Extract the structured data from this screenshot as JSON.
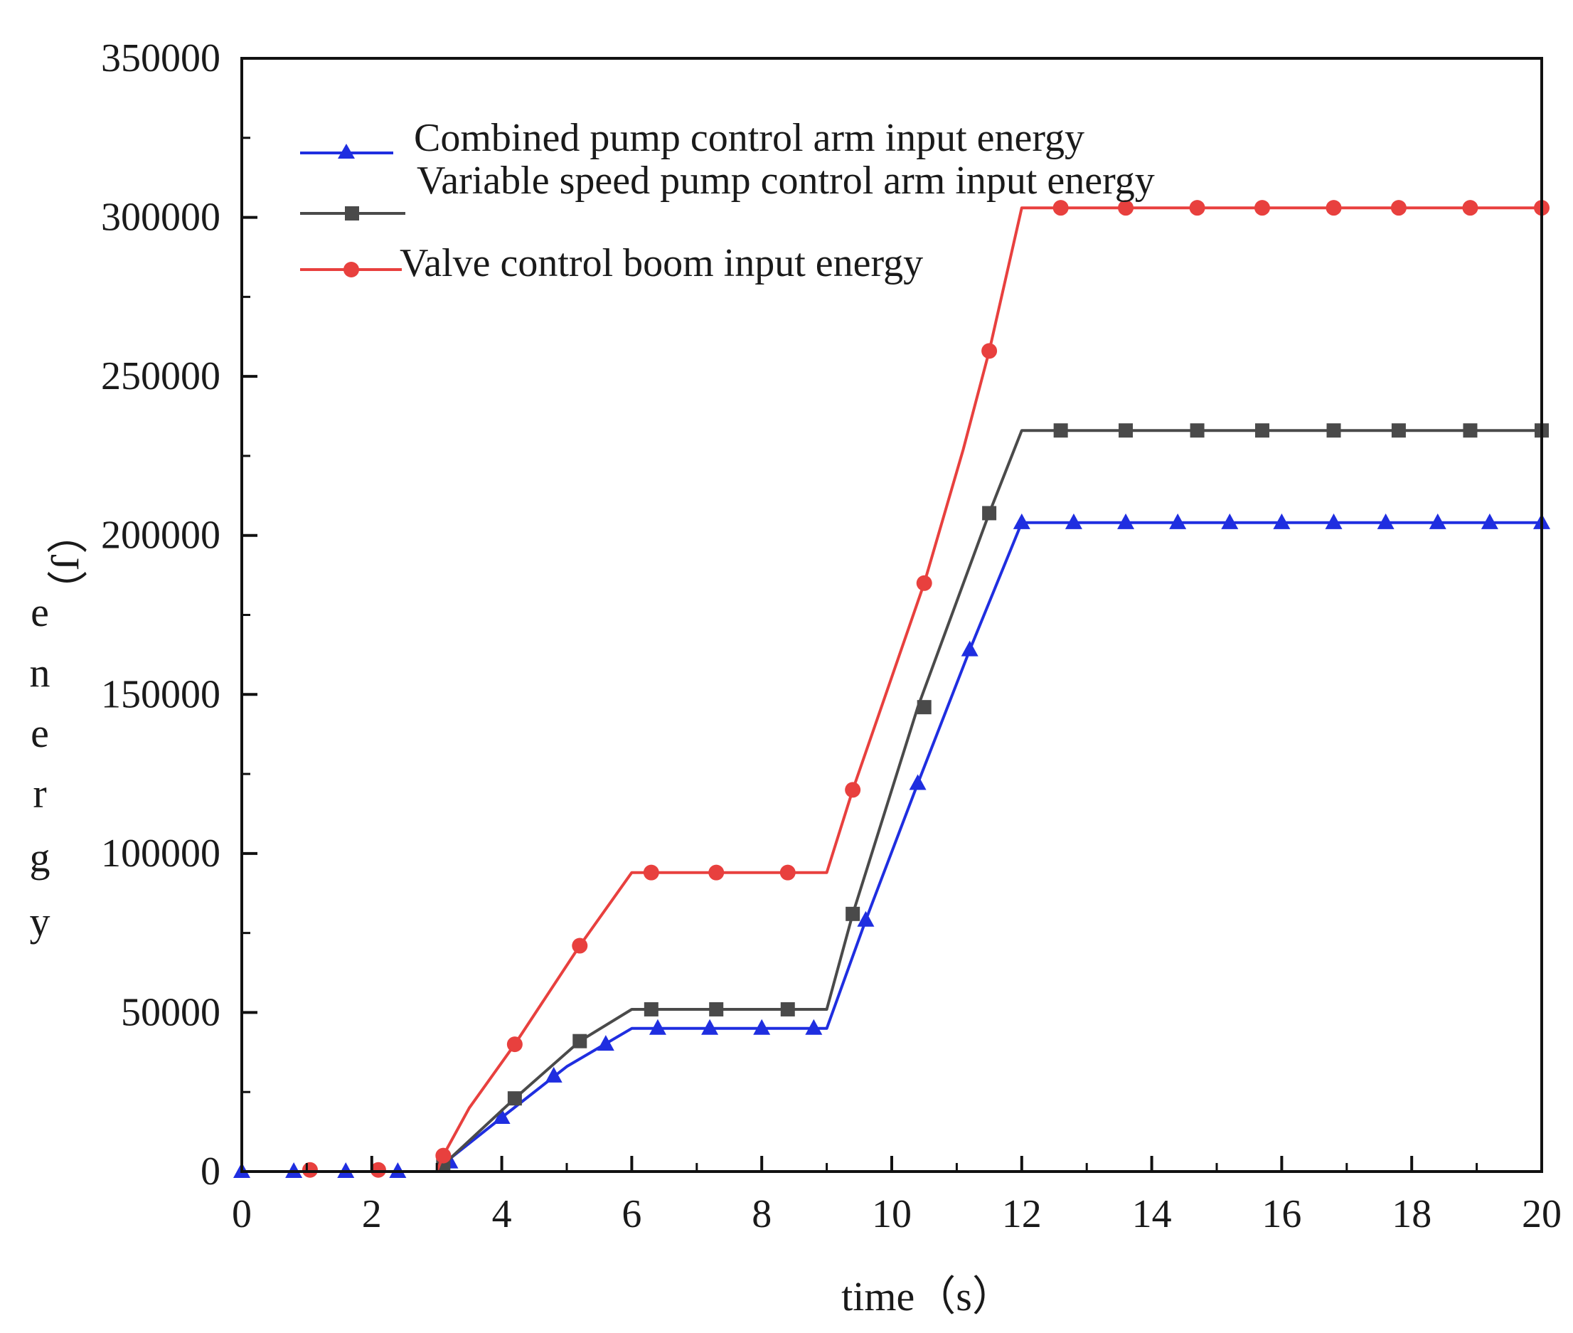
{
  "chart_data": {
    "type": "line",
    "title": "",
    "xlabel": "time（s）",
    "ylabel": "energy（J）",
    "xlim": [
      0,
      20
    ],
    "ylim": [
      0,
      350000
    ],
    "x_ticks": [
      0,
      2,
      4,
      6,
      8,
      10,
      12,
      14,
      16,
      18,
      20
    ],
    "y_ticks": [
      0,
      50000,
      100000,
      150000,
      200000,
      250000,
      300000,
      350000
    ],
    "x_tick_labels": [
      "0",
      "2",
      "4",
      "6",
      "8",
      "10",
      "12",
      "14",
      "16",
      "18",
      "20"
    ],
    "y_tick_labels": [
      "0",
      "50000",
      "100000",
      "150000",
      "200000",
      "250000",
      "300000",
      "350000"
    ],
    "ylabel_parts": [
      "（J）",
      "e",
      "n",
      "e",
      "r",
      "g",
      "y"
    ],
    "legend_position": "top-left",
    "series": [
      {
        "name": "Combined pump control arm input energy",
        "color": "#1f2ee0",
        "marker": "triangle",
        "line": [
          [
            0,
            0
          ],
          [
            3,
            0
          ],
          [
            3.2,
            4000
          ],
          [
            4,
            17000
          ],
          [
            5,
            33000
          ],
          [
            6,
            45000
          ],
          [
            9,
            45000
          ],
          [
            9.6,
            79000
          ],
          [
            10.4,
            122000
          ],
          [
            11.2,
            164000
          ],
          [
            12,
            204000
          ],
          [
            20,
            204000
          ]
        ],
        "markers": [
          [
            0,
            0
          ],
          [
            0.8,
            0
          ],
          [
            1.6,
            0
          ],
          [
            2.4,
            0
          ],
          [
            3.2,
            3000
          ],
          [
            4,
            17000
          ],
          [
            4.8,
            30000
          ],
          [
            5.6,
            40000
          ],
          [
            6.4,
            45000
          ],
          [
            7.2,
            45000
          ],
          [
            8,
            45000
          ],
          [
            8.8,
            45000
          ],
          [
            9.6,
            79000
          ],
          [
            10.4,
            122000
          ],
          [
            11.2,
            164000
          ],
          [
            12,
            204000
          ],
          [
            12.8,
            204000
          ],
          [
            13.6,
            204000
          ],
          [
            14.4,
            204000
          ],
          [
            15.2,
            204000
          ],
          [
            16,
            204000
          ],
          [
            16.8,
            204000
          ],
          [
            17.6,
            204000
          ],
          [
            18.4,
            204000
          ],
          [
            19.2,
            204000
          ],
          [
            20,
            204000
          ]
        ]
      },
      {
        "name": "Variable speed pump control arm input energy",
        "color": "#4a4a4a",
        "marker": "square",
        "line": [
          [
            0,
            0
          ],
          [
            3,
            0
          ],
          [
            3.2,
            4000
          ],
          [
            4.2,
            23000
          ],
          [
            5.2,
            41000
          ],
          [
            6,
            51000
          ],
          [
            9,
            51000
          ],
          [
            9.4,
            81000
          ],
          [
            10.4,
            146000
          ],
          [
            11.5,
            207000
          ],
          [
            12,
            233000
          ],
          [
            20,
            233000
          ]
        ],
        "markers": [
          [
            3.1,
            2000
          ],
          [
            4.2,
            23000
          ],
          [
            5.2,
            41000
          ],
          [
            6.3,
            51000
          ],
          [
            7.3,
            51000
          ],
          [
            8.4,
            51000
          ],
          [
            9.4,
            81000
          ],
          [
            10.5,
            146000
          ],
          [
            11.5,
            207000
          ],
          [
            12.6,
            233000
          ],
          [
            13.6,
            233000
          ],
          [
            14.7,
            233000
          ],
          [
            15.7,
            233000
          ],
          [
            16.8,
            233000
          ],
          [
            17.8,
            233000
          ],
          [
            18.9,
            233000
          ],
          [
            20,
            233000
          ]
        ]
      },
      {
        "name": "Valve control boom input energy",
        "color": "#e8403e",
        "marker": "circle",
        "line": [
          [
            0,
            0
          ],
          [
            3,
            0
          ],
          [
            3.1,
            5000
          ],
          [
            3.5,
            20000
          ],
          [
            4.2,
            40000
          ],
          [
            5.2,
            71000
          ],
          [
            6,
            94000
          ],
          [
            9,
            94000
          ],
          [
            9.4,
            120000
          ],
          [
            10.5,
            185000
          ],
          [
            11.1,
            227000
          ],
          [
            11.5,
            258000
          ],
          [
            12,
            303000
          ],
          [
            20,
            303000
          ]
        ],
        "markers": [
          [
            1.05,
            500
          ],
          [
            2.1,
            500
          ],
          [
            3.1,
            5000
          ],
          [
            4.2,
            40000
          ],
          [
            5.2,
            71000
          ],
          [
            6.3,
            94000
          ],
          [
            7.3,
            94000
          ],
          [
            8.4,
            94000
          ],
          [
            9.4,
            120000
          ],
          [
            10.5,
            185000
          ],
          [
            11.5,
            258000
          ],
          [
            12.6,
            303000
          ],
          [
            13.6,
            303000
          ],
          [
            14.7,
            303000
          ],
          [
            15.7,
            303000
          ],
          [
            16.8,
            303000
          ],
          [
            17.8,
            303000
          ],
          [
            18.9,
            303000
          ],
          [
            20,
            303000
          ]
        ]
      }
    ]
  }
}
